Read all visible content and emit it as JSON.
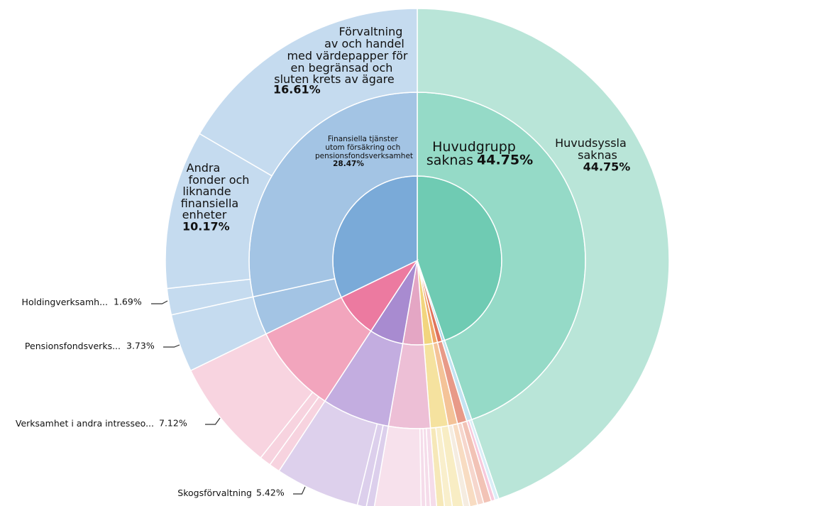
{
  "chart_data": {
    "type": "sunburst",
    "nodes": [
      {
        "label": null,
        "value": 44.75,
        "color": "#6fcbb3",
        "children": [
          {
            "label": "Huvudgrupp\nsaknas",
            "value": 44.75,
            "value_label": "44.75%",
            "color": "#95dac7",
            "children": [
              {
                "label": "Huvudsyssla\nsaknas",
                "value": 44.75,
                "value_label": "44.75%",
                "color": "#b9e5d8"
              }
            ]
          }
        ]
      },
      {
        "label": null,
        "value": 0.5,
        "color": "#a9d6ea",
        "children": [
          {
            "label": null,
            "value": 0.5,
            "color": "#c4e3f1",
            "children": [
              {
                "label": null,
                "value": 0.25,
                "color": "#d9eef7"
              },
              {
                "label": null,
                "value": 0.25,
                "color": "#f7c9dc"
              }
            ]
          }
        ]
      },
      {
        "label": null,
        "value": 0.9,
        "color": "#e0735d",
        "children": [
          {
            "label": null,
            "value": 0.9,
            "color": "#e89a88",
            "children": [
              {
                "label": null,
                "value": 0.5,
                "color": "#f2c3b6"
              },
              {
                "label": null,
                "value": 0.4,
                "color": "#f6d6cc"
              }
            ]
          }
        ]
      },
      {
        "label": null,
        "value": 0.9,
        "color": "#f0a868",
        "children": [
          {
            "label": null,
            "value": 0.9,
            "color": "#f4c398",
            "children": [
              {
                "label": null,
                "value": 0.5,
                "color": "#f8dcc2"
              },
              {
                "label": null,
                "value": 0.4,
                "color": "#f5ece0"
              }
            ]
          }
        ]
      },
      {
        "label": null,
        "value": 1.7,
        "color": "#f2d57e",
        "children": [
          {
            "label": null,
            "value": 1.7,
            "color": "#f5e29f",
            "children": [
              {
                "label": null,
                "value": 0.7,
                "color": "#f8edc4"
              },
              {
                "label": null,
                "value": 0.5,
                "color": "#f9efcc"
              },
              {
                "label": null,
                "value": 0.5,
                "color": "#f6e8b8"
              }
            ]
          }
        ]
      },
      {
        "label": null,
        "value": 4.0,
        "color": "#e4a6c4",
        "children": [
          {
            "label": null,
            "value": 4.0,
            "color": "#edbfd6",
            "children": [
              {
                "label": null,
                "value": 0.4,
                "color": "#f5dcea"
              },
              {
                "label": null,
                "value": 0.3,
                "color": "#f5dcea"
              },
              {
                "label": null,
                "value": 0.3,
                "color": "#f5dcea"
              },
              {
                "label": null,
                "value": 3.0,
                "color": "#f7e1ec"
              }
            ]
          }
        ]
      },
      {
        "label": null,
        "value": 6.5,
        "color": "#a88bd0",
        "children": [
          {
            "label": null,
            "value": 6.5,
            "color": "#c3ade0",
            "children": [
              {
                "label": null,
                "value": 0.5,
                "color": "#dccfec"
              },
              {
                "label": null,
                "value": 0.58,
                "color": "#dccfec"
              },
              {
                "label": "Skogsförvaltning",
                "value": 5.42,
                "value_label": "5.42%",
                "color": "#ddd0ec"
              }
            ]
          }
        ]
      },
      {
        "label": null,
        "value": 8.55,
        "color": "#ec7aa0",
        "children": [
          {
            "label": null,
            "value": 8.55,
            "color": "#f2a5bd",
            "children": [
              {
                "label": null,
                "value": 0.7,
                "color": "#f7d3df"
              },
              {
                "label": null,
                "value": 0.73,
                "color": "#f7d3df"
              },
              {
                "label": "Verksamhet i andra intresseo...",
                "value": 7.12,
                "value_label": "7.12%",
                "color": "#f8d4e0"
              }
            ]
          }
        ]
      },
      {
        "label": null,
        "value": 32.2,
        "color": "#7aaad8",
        "children": [
          {
            "label": null,
            "value": 3.73,
            "color": "#a3c4e4",
            "children": [
              {
                "label": "Pensionsfondsverks...",
                "value": 3.73,
                "value_label": "3.73%",
                "color": "#c5dbef"
              }
            ]
          },
          {
            "label": "Finansiella tjänster\nutom försäkring och\npensionsfondsverksamhet",
            "value": 28.47,
            "value_label": "28.47%",
            "color": "#a3c4e4",
            "children": [
              {
                "label": "Holdingverksamh...",
                "value": 1.69,
                "value_label": "1.69%",
                "color": "#c5dbef"
              },
              {
                "label": "Andra\nfonder och\nliknande\nfinansiella\nenheter",
                "value": 10.17,
                "value_label": "10.17%",
                "color": "#c5dbef"
              },
              {
                "label": "Förvaltning\nav och handel\nmed värdepapper för\nen begränsad och\nsluten krets av ägare",
                "value": 16.61,
                "value_label": "16.61%",
                "color": "#c5dbef"
              }
            ]
          }
        ]
      }
    ]
  }
}
